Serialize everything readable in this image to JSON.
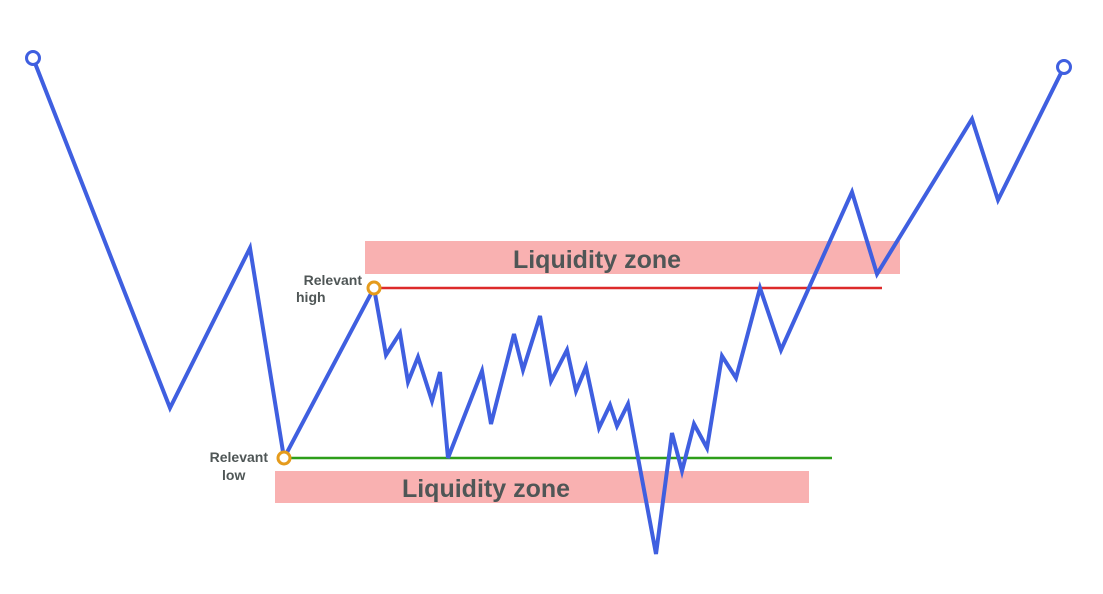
{
  "colors": {
    "background": "#ffffff",
    "price_line": "#3f5fe0",
    "zone_fill": "#f9b1b1",
    "high_line": "#dd2a2a",
    "low_line": "#2e9e1a",
    "marker_orange": "#e59b1c",
    "text": "#4f5656"
  },
  "labels": {
    "upper_zone": "Liquidity zone",
    "lower_zone": "Liquidity zone",
    "relevant_high": [
      "Relevant",
      "high"
    ],
    "relevant_low": [
      "Relevant",
      "low"
    ]
  },
  "markers": {
    "start_icon": "hollow-circle-icon",
    "end_icon": "hollow-circle-icon",
    "relevant_high_icon": "hollow-circle-icon",
    "relevant_low_icon": "hollow-circle-icon"
  }
}
